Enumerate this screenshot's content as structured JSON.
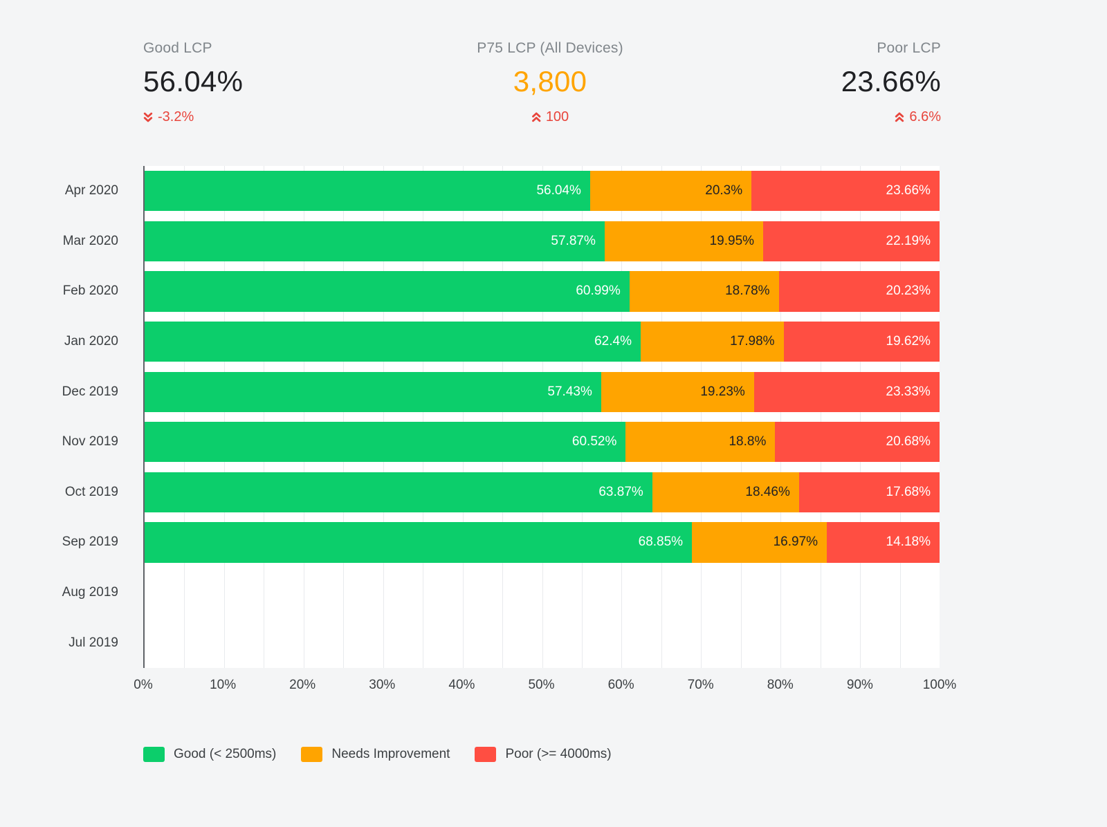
{
  "kpis": [
    {
      "label": "Good LCP",
      "value": "56.04%",
      "delta": "-3.2%",
      "direction": "down",
      "value_style": "dark"
    },
    {
      "label": "P75 LCP (All Devices)",
      "value": "3,800",
      "delta": "100",
      "direction": "up",
      "value_style": "orange"
    },
    {
      "label": "Poor LCP",
      "value": "23.66%",
      "delta": "6.6%",
      "direction": "up",
      "value_style": "dark"
    }
  ],
  "colors": {
    "good": "#0cce6b",
    "needs_improvement": "#ffa400",
    "poor": "#ff4e42",
    "delta_red": "#e8453c",
    "p75_orange": "#ffa400"
  },
  "chart_data": {
    "type": "bar",
    "orientation": "horizontal",
    "stacked": true,
    "grid": true,
    "legend_position": "bottom",
    "xlim": [
      0,
      100
    ],
    "x_ticks": [
      "0%",
      "10%",
      "20%",
      "30%",
      "40%",
      "50%",
      "60%",
      "70%",
      "80%",
      "90%",
      "100%"
    ],
    "categories": [
      "Apr 2020",
      "Mar 2020",
      "Feb 2020",
      "Jan 2020",
      "Dec 2019",
      "Nov 2019",
      "Oct 2019",
      "Sep 2019",
      "Aug 2019",
      "Jul 2019"
    ],
    "series": [
      {
        "name": "Good (< 2500ms)",
        "color": "#0cce6b",
        "label_color": "#ffffff",
        "values": [
          56.04,
          57.87,
          60.99,
          62.4,
          57.43,
          60.52,
          63.87,
          68.85,
          null,
          null
        ],
        "labels": [
          "56.04%",
          "57.87%",
          "60.99%",
          "62.4%",
          "57.43%",
          "60.52%",
          "63.87%",
          "68.85%",
          null,
          null
        ]
      },
      {
        "name": "Needs Improvement",
        "color": "#ffa400",
        "label_color": "#212124",
        "values": [
          20.3,
          19.95,
          18.78,
          17.98,
          19.23,
          18.8,
          18.46,
          16.97,
          null,
          null
        ],
        "labels": [
          "20.3%",
          "19.95%",
          "18.78%",
          "17.98%",
          "19.23%",
          "18.8%",
          "18.46%",
          "16.97%",
          null,
          null
        ]
      },
      {
        "name": "Poor (>= 4000ms)",
        "color": "#ff4e42",
        "label_color": "#ffffff",
        "values": [
          23.66,
          22.19,
          20.23,
          19.62,
          23.33,
          20.68,
          17.68,
          14.18,
          null,
          null
        ],
        "labels": [
          "23.66%",
          "22.19%",
          "20.23%",
          "19.62%",
          "23.33%",
          "20.68%",
          "17.68%",
          "14.18%",
          null,
          null
        ]
      }
    ]
  }
}
